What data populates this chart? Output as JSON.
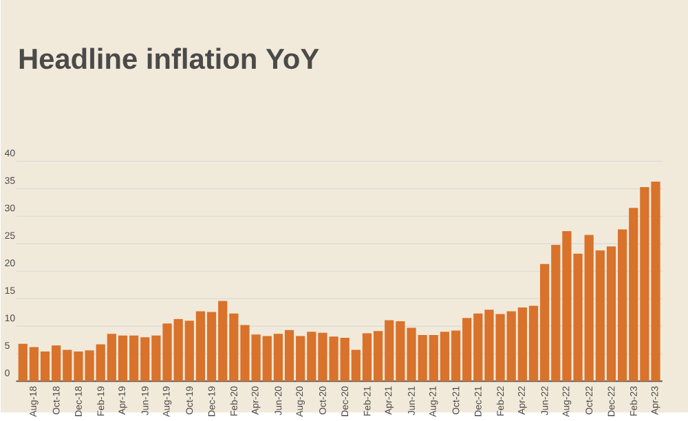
{
  "chart_data": {
    "type": "bar",
    "title": "Headline inflation YoY",
    "categories": [
      null,
      "Aug-18",
      null,
      "Oct-18",
      null,
      "Dec-18",
      null,
      "Feb-19",
      null,
      "Apr-19",
      null,
      "Jun-19",
      null,
      "Aug-19",
      null,
      "Oct-19",
      null,
      "Dec-19",
      null,
      "Feb-20",
      null,
      "Apr-20",
      null,
      "Jun-20",
      null,
      "Aug-20",
      null,
      "Oct-20",
      null,
      "Dec-20",
      null,
      "Feb-21",
      null,
      "Apr-21",
      null,
      "Jun-21",
      null,
      "Aug-21",
      null,
      "Oct-21",
      null,
      "Dec-21",
      null,
      "Feb-22",
      null,
      "Apr-22",
      null,
      "Jun-22",
      null,
      "Aug-22",
      null,
      "Oct-22",
      null,
      "Dec-22",
      null,
      "Feb-23",
      null,
      "Apr-23"
    ],
    "values": [
      6.8,
      6.2,
      5.4,
      6.5,
      5.7,
      5.4,
      5.6,
      6.7,
      8.6,
      8.3,
      8.3,
      8.0,
      8.3,
      10.5,
      11.3,
      11.0,
      12.7,
      12.6,
      14.6,
      12.3,
      10.2,
      8.5,
      8.2,
      8.6,
      9.3,
      8.2,
      9.0,
      8.8,
      8.1,
      7.9,
      5.7,
      8.7,
      9.1,
      11.1,
      10.9,
      9.7,
      8.4,
      8.4,
      9.0,
      9.2,
      11.5,
      12.3,
      13.0,
      12.2,
      12.7,
      13.4,
      13.7,
      21.3,
      24.8,
      27.3,
      23.2,
      26.6,
      23.8,
      24.5,
      27.6,
      31.5,
      35.3,
      36.3
    ],
    "color": "#d9722b",
    "ylim": [
      0,
      40
    ],
    "yticks": [
      0,
      5,
      10,
      15,
      20,
      25,
      30,
      35,
      40
    ],
    "grid": "y"
  }
}
